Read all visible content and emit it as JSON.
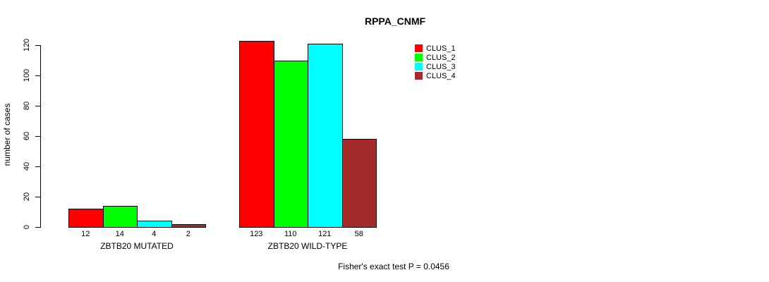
{
  "chart_data": {
    "type": "bar",
    "title": "RPPA_CNMF",
    "xlabel": "",
    "ylabel": "number of cases",
    "ylim": [
      0,
      120
    ],
    "yticks": [
      0,
      20,
      40,
      60,
      80,
      100,
      120
    ],
    "grid": false,
    "legend_position": "top-right",
    "categories": [
      "ZBTB20 MUTATED",
      "ZBTB20 WILD-TYPE"
    ],
    "series": [
      {
        "name": "CLUS_1",
        "color": "#ff0000",
        "values": [
          12,
          123
        ]
      },
      {
        "name": "CLUS_2",
        "color": "#00ff00",
        "values": [
          14,
          110
        ]
      },
      {
        "name": "CLUS_3",
        "color": "#00ffff",
        "values": [
          4,
          121
        ]
      },
      {
        "name": "CLUS_4",
        "color": "#a52a2a",
        "values": [
          2,
          58
        ]
      }
    ],
    "bar_value_labels": [
      [
        "12",
        "14",
        "4",
        "2"
      ],
      [
        "123",
        "110",
        "121",
        "58"
      ]
    ],
    "annotation": "Fisher's exact test P = 0.0456"
  }
}
